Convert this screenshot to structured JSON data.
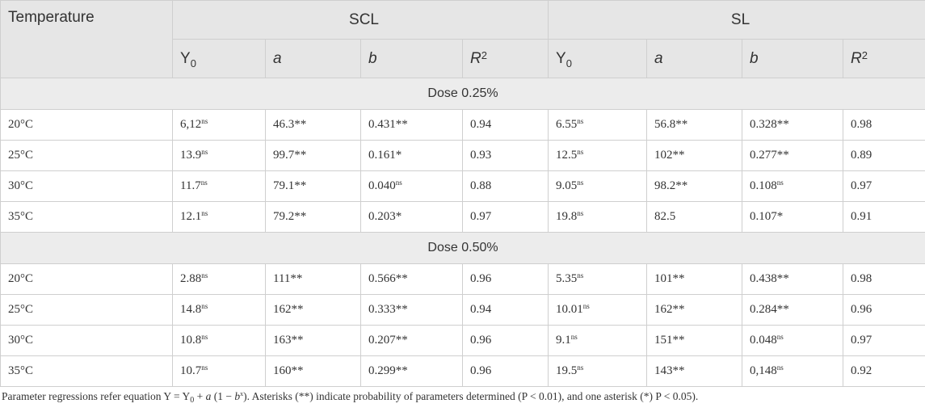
{
  "table": {
    "header": "Temperature",
    "groups": [
      {
        "name": "SCL",
        "params": [
          {
            "text": "Y",
            "sub": "0"
          },
          {
            "text": "a"
          },
          {
            "text": "b"
          },
          {
            "text": "R",
            "sup": "2"
          }
        ]
      },
      {
        "name": "SL",
        "params": [
          {
            "text": "Y",
            "sub": "0"
          },
          {
            "text": "a"
          },
          {
            "text": "b"
          },
          {
            "text": "R",
            "sup": "2"
          }
        ]
      }
    ],
    "sections": [
      {
        "label": "Dose 0.25%",
        "rows": [
          {
            "temperature": "20°C",
            "cells": [
              {
                "value": "6,12",
                "sup": "ns"
              },
              "46.3**",
              "0.431**",
              "0.94",
              {
                "value": "6.55",
                "sup": "ns"
              },
              "56.8**",
              "0.328**",
              "0.98"
            ]
          },
          {
            "temperature": "25°C",
            "cells": [
              {
                "value": "13.9",
                "sup": "ns"
              },
              "99.7**",
              "0.161*",
              "0.93",
              {
                "value": "12.5",
                "sup": "ns"
              },
              "102**",
              "0.277**",
              "0.89"
            ]
          },
          {
            "temperature": "30°C",
            "cells": [
              {
                "value": "11.7",
                "sup": "ns"
              },
              "79.1**",
              {
                "value": "0.040",
                "sup": "ns"
              },
              "0.88",
              {
                "value": "9.05",
                "sup": "ns"
              },
              "98.2**",
              {
                "value": "0.108",
                "sup": "ns"
              },
              "0.97"
            ]
          },
          {
            "temperature": "35°C",
            "cells": [
              {
                "value": "12.1",
                "sup": "ns"
              },
              "79.2**",
              "0.203*",
              "0.97",
              {
                "value": "19.8",
                "sup": "ns"
              },
              "82.5",
              "0.107*",
              "0.91"
            ]
          }
        ]
      },
      {
        "label": "Dose 0.50%",
        "rows": [
          {
            "temperature": "20°C",
            "cells": [
              {
                "value": "2.88",
                "sup": "ns"
              },
              "111**",
              "0.566**",
              "0.96",
              {
                "value": "5.35",
                "sup": "ns"
              },
              "101**",
              "0.438**",
              "0.98"
            ]
          },
          {
            "temperature": "25°C",
            "cells": [
              {
                "value": "14.8",
                "sup": "ns"
              },
              "162**",
              "0.333**",
              "0.94",
              {
                "value": "10.01",
                "sup": "ns"
              },
              "162**",
              "0.284**",
              "0.96"
            ]
          },
          {
            "temperature": "30°C",
            "cells": [
              {
                "value": "10.8",
                "sup": "ns"
              },
              "163**",
              "0.207**",
              "0.96",
              {
                "value": "9.1",
                "sup": "ns"
              },
              "151**",
              {
                "value": "0.048",
                "sup": "ns"
              },
              "0.97"
            ]
          },
          {
            "temperature": "35°C",
            "cells": [
              {
                "value": "10.7",
                "sup": "ns"
              },
              "160**",
              "0.299**",
              "0.96",
              {
                "value": "19.5",
                "sup": "ns"
              },
              "143**",
              {
                "value": "0,148",
                "sup": "ns"
              },
              "0.92"
            ]
          }
        ]
      }
    ]
  },
  "footnote": [
    {
      "text": "Parameter regressions refer equation Y = Y"
    },
    {
      "text": "0",
      "style": "sub"
    },
    {
      "text": " + "
    },
    {
      "text": "a",
      "style": "italic"
    },
    {
      "text": " (1 − "
    },
    {
      "text": "b",
      "style": "italic"
    },
    {
      "text": "x",
      "style": "sup"
    },
    {
      "text": "). Asterisks (**) indicate probability of parameters determined (P < 0.01), and one asterisk (*) P < 0.05)."
    }
  ]
}
